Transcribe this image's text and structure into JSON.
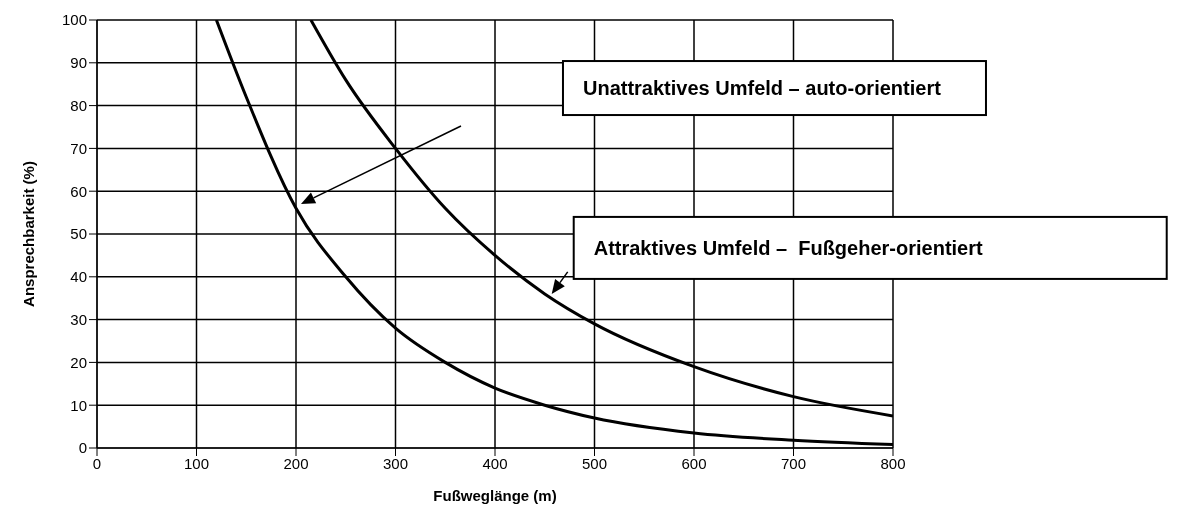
{
  "chart_data": {
    "type": "line",
    "xlabel": "Fußweglänge (m)",
    "ylabel": "Ansprechbarkeit (%)",
    "xlim": [
      0,
      800
    ],
    "ylim": [
      0,
      100
    ],
    "xticks": [
      0,
      100,
      200,
      300,
      400,
      500,
      600,
      700,
      800
    ],
    "yticks": [
      0,
      10,
      20,
      30,
      40,
      50,
      60,
      70,
      80,
      90,
      100
    ],
    "grid": true,
    "marker": "none",
    "line_style": "solid",
    "series": [
      {
        "color": "#000000",
        "x": [
          120,
          150,
          200,
          250,
          300,
          350,
          400,
          450,
          500,
          600,
          700,
          800
        ],
        "values": [
          100,
          82,
          56,
          40,
          28,
          20,
          14,
          10,
          7,
          3.5,
          1.8,
          0.8
        ]
      },
      {
        "color": "#000000",
        "x": [
          215,
          250,
          300,
          350,
          400,
          450,
          500,
          600,
          700,
          800
        ],
        "values": [
          100,
          86,
          70,
          56,
          45,
          36,
          29,
          19,
          12,
          7.5
        ]
      }
    ],
    "annotations": [
      "Unattraktives Umfeld – auto-orientiert",
      "Attraktives Umfeld –  Fußgeher-orientiert"
    ]
  }
}
